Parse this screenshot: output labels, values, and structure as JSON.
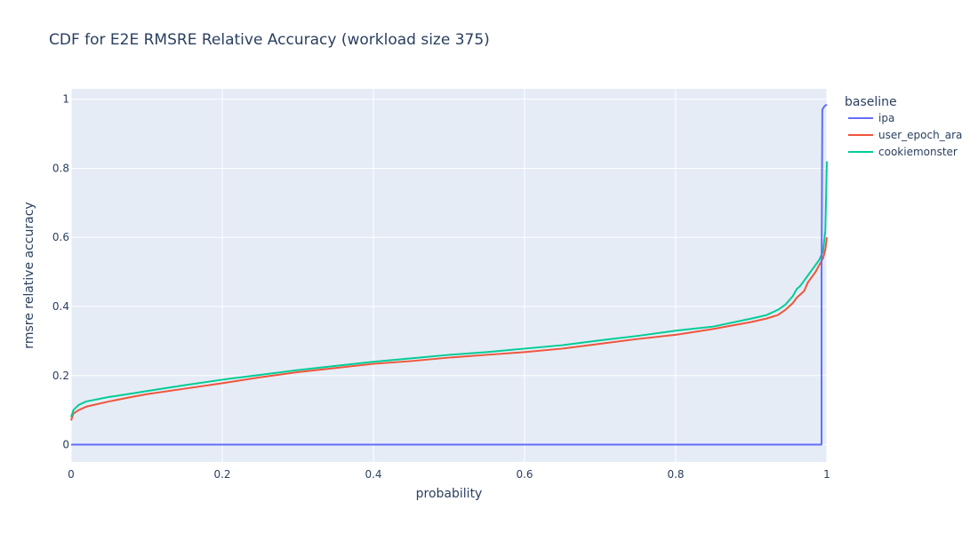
{
  "chart_data": {
    "type": "line",
    "title": "CDF for E2E RMSRE Relative Accuracy (workload size 375)",
    "xlabel": "probability",
    "ylabel": "rmsre relative accuracy",
    "xlim": [
      0,
      1
    ],
    "ylim": [
      -0.05,
      1.03
    ],
    "xticks": [
      0,
      0.2,
      0.4,
      0.6,
      0.8,
      1
    ],
    "xtick_labels": [
      "0",
      "0.2",
      "0.4",
      "0.6",
      "0.8",
      "1"
    ],
    "yticks": [
      0,
      0.2,
      0.4,
      0.6,
      0.8,
      1
    ],
    "ytick_labels": [
      "0",
      "0.2",
      "0.4",
      "0.6",
      "0.8",
      "1"
    ],
    "grid": true,
    "legend_title": "baseline",
    "legend_position": "right",
    "plot_background": "#e5ecf6",
    "series": [
      {
        "name": "ipa",
        "color": "#636efa",
        "x": [
          0,
          0.993,
          0.993,
          0.994,
          0.997,
          1.0
        ],
        "y": [
          0,
          0,
          0.5,
          0.97,
          0.98,
          0.985
        ]
      },
      {
        "name": "user_epoch_ara",
        "color": "#ef553b",
        "x": [
          0,
          0.003,
          0.01,
          0.02,
          0.05,
          0.08,
          0.1,
          0.15,
          0.2,
          0.25,
          0.3,
          0.35,
          0.4,
          0.45,
          0.5,
          0.55,
          0.6,
          0.65,
          0.7,
          0.75,
          0.8,
          0.85,
          0.9,
          0.92,
          0.935,
          0.945,
          0.955,
          0.96,
          0.965,
          0.97,
          0.975,
          0.98,
          0.985,
          0.99,
          0.995,
          0.998,
          1.0
        ],
        "y": [
          0.07,
          0.09,
          0.1,
          0.11,
          0.125,
          0.138,
          0.146,
          0.162,
          0.178,
          0.195,
          0.21,
          0.222,
          0.234,
          0.242,
          0.252,
          0.26,
          0.268,
          0.278,
          0.292,
          0.306,
          0.318,
          0.335,
          0.355,
          0.365,
          0.375,
          0.39,
          0.41,
          0.425,
          0.435,
          0.445,
          0.47,
          0.485,
          0.5,
          0.52,
          0.54,
          0.565,
          0.6
        ]
      },
      {
        "name": "cookiemonster",
        "color": "#00cc96",
        "x": [
          0,
          0.003,
          0.01,
          0.02,
          0.05,
          0.08,
          0.1,
          0.15,
          0.2,
          0.25,
          0.3,
          0.35,
          0.4,
          0.45,
          0.5,
          0.55,
          0.6,
          0.65,
          0.7,
          0.75,
          0.8,
          0.85,
          0.9,
          0.92,
          0.935,
          0.945,
          0.955,
          0.96,
          0.965,
          0.97,
          0.975,
          0.98,
          0.985,
          0.99,
          0.995,
          0.998,
          1.0
        ],
        "y": [
          0.08,
          0.1,
          0.115,
          0.125,
          0.138,
          0.148,
          0.155,
          0.172,
          0.188,
          0.202,
          0.216,
          0.228,
          0.24,
          0.25,
          0.26,
          0.268,
          0.278,
          0.288,
          0.302,
          0.315,
          0.33,
          0.342,
          0.365,
          0.375,
          0.39,
          0.405,
          0.43,
          0.45,
          0.46,
          0.475,
          0.49,
          0.505,
          0.52,
          0.535,
          0.56,
          0.62,
          0.82
        ]
      }
    ]
  }
}
